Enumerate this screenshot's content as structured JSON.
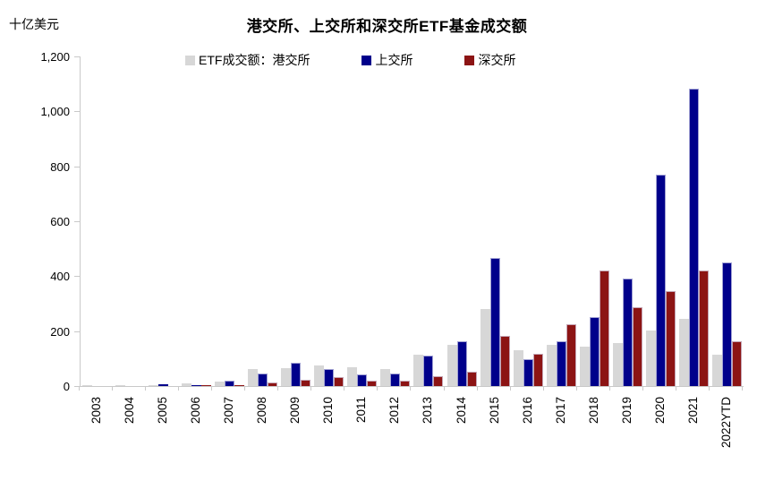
{
  "title": "港交所、上交所和深交所ETF基金成交额",
  "unit_label": "十亿美元",
  "chart_data": {
    "type": "bar",
    "title": "港交所、上交所和深交所ETF基金成交额",
    "ylabel": "十亿美元",
    "grid": false,
    "legend_position": "top",
    "ylim": [
      0,
      1200
    ],
    "yticks": [
      0,
      200,
      400,
      600,
      800,
      1000,
      1200
    ],
    "ytick_labels": [
      "0",
      "200",
      "400",
      "600",
      "800",
      "1,000",
      "1,200"
    ],
    "categories": [
      "2003",
      "2004",
      "2005",
      "2006",
      "2007",
      "2008",
      "2009",
      "2010",
      "2011",
      "2012",
      "2013",
      "2014",
      "2015",
      "2016",
      "2017",
      "2018",
      "2019",
      "2020",
      "2021",
      "2022YTD"
    ],
    "series": [
      {
        "name": "ETF成交额：港交所",
        "color": "#D7D7D7",
        "values": [
          1,
          2,
          2,
          9,
          16,
          62,
          67,
          75,
          69,
          63,
          115,
          150,
          279,
          131,
          150,
          143,
          156,
          203,
          245,
          115
        ]
      },
      {
        "name": "上交所",
        "color": "#00008B",
        "values": [
          0,
          0,
          6,
          3,
          21,
          46,
          84,
          61,
          41,
          45,
          110,
          164,
          466,
          97,
          162,
          252,
          391,
          770,
          1082,
          450
        ]
      },
      {
        "name": "深交所",
        "color": "#8C1414",
        "values": [
          0,
          0,
          0,
          1,
          3,
          12,
          24,
          34,
          19,
          21,
          36,
          51,
          184,
          118,
          226,
          422,
          286,
          345,
          420,
          164
        ]
      }
    ],
    "axis_color": "#C9C9C9"
  }
}
